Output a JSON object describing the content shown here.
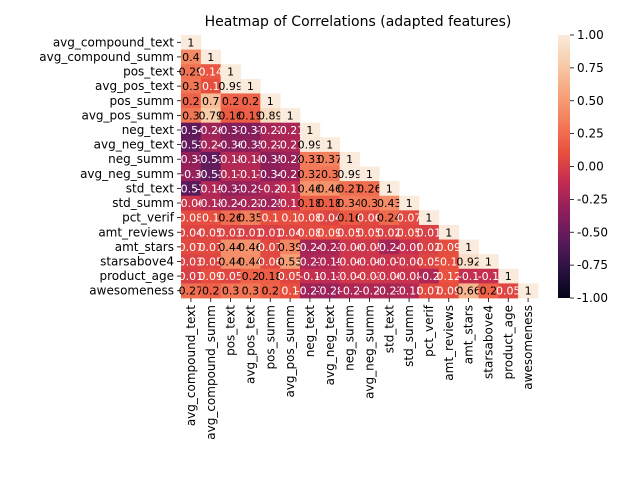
{
  "chart_data": {
    "type": "heatmap",
    "title": "Heatmap of Correlations (adapted features)",
    "xlabel": "",
    "ylabel": "",
    "variables": [
      "avg_compound_text",
      "avg_compound_summ",
      "pos_text",
      "avg_pos_text",
      "pos_summ",
      "avg_pos_summ",
      "neg_text",
      "avg_neg_text",
      "neg_summ",
      "avg_neg_summ",
      "std_text",
      "std_summ",
      "pct_verif",
      "amt_reviews",
      "amt_stars",
      "starsabove4",
      "product_age",
      "awesomeness"
    ],
    "mask": "upper-triangle",
    "colorbar": {
      "min": -1.0,
      "max": 1.0,
      "ticks": [
        "1.00",
        "0.75",
        "0.50",
        "0.25",
        "0.00",
        "-0.25",
        "-0.50",
        "-0.75",
        "-1.00"
      ],
      "ticks_values": [
        1.0,
        0.75,
        0.5,
        0.25,
        0.0,
        -0.25,
        -0.5,
        -0.75,
        -1.0
      ]
    },
    "values": [
      [
        1
      ],
      [
        0.4,
        1
      ],
      [
        0.29,
        0.14,
        1
      ],
      [
        0.3,
        0.1,
        0.99,
        1
      ],
      [
        0.2,
        0.7,
        0.2,
        0.2,
        1
      ],
      [
        0.3,
        0.79,
        0.16,
        0.19,
        0.89,
        1
      ],
      [
        -0.54,
        -0.26,
        -0.37,
        -0.37,
        -0.22,
        -0.21,
        1
      ],
      [
        -0.53,
        -0.24,
        -0.36,
        -0.35,
        -0.22,
        -0.21,
        0.99,
        1
      ],
      [
        -0.31,
        -0.53,
        -0.18,
        -0.18,
        -0.35,
        -0.28,
        0.33,
        0.37,
        1
      ],
      [
        -0.3,
        -0.53,
        -0.17,
        -0.17,
        -0.34,
        -0.27,
        0.32,
        0.3,
        0.99,
        1
      ],
      [
        -0.57,
        -0.19,
        -0.31,
        -0.29,
        -0.2,
        -0.11,
        0.46,
        0.46,
        0.27,
        0.26,
        1
      ],
      [
        -0.06,
        -0.18,
        -0.24,
        -0.22,
        -0.25,
        -0.11,
        0.18,
        0.18,
        0.34,
        0.3,
        0.43,
        1
      ],
      [
        0.08,
        0.1,
        0.26,
        0.35,
        0.1,
        0.1,
        0.08,
        0.04,
        0.16,
        0.06,
        0.24,
        0.07,
        1
      ],
      [
        0.04,
        0.05,
        0.03,
        0.01,
        0.01,
        0.04,
        0.08,
        0.09,
        0.05,
        0.05,
        0.02,
        0.05,
        0.01,
        1
      ],
      [
        0.07,
        0.07,
        0.44,
        0.46,
        0.07,
        0.39,
        -0.24,
        -0.23,
        -0.06,
        -0.05,
        -0.24,
        -0.09,
        0.02,
        0.09,
        1
      ],
      [
        0.03,
        0.05,
        0.44,
        0.44,
        0.06,
        0.53,
        -0.21,
        -0.19,
        -0.06,
        -0.06,
        -0.07,
        -0.04,
        0.05,
        0.1,
        0.92,
        1
      ],
      [
        0.01,
        0.09,
        0.05,
        0.2,
        0.18,
        0.05,
        -0.1,
        -0.13,
        -0.04,
        -0.03,
        -0.06,
        -0.08,
        -0.2,
        0.12,
        -0.1,
        -0.1,
        1
      ],
      [
        0.27,
        0.2,
        0.3,
        0.3,
        0.2,
        0.1,
        -0.27,
        -0.28,
        -0.2,
        -0.2,
        -0.23,
        -0.18,
        0.07,
        0.09,
        0.66,
        0.2,
        0.05,
        1
      ]
    ],
    "labels": [
      [
        "1"
      ],
      [
        "0.4",
        "1"
      ],
      [
        "0.29",
        "0.14",
        "1"
      ],
      [
        "0.3",
        "0.1",
        "0.99",
        "1"
      ],
      [
        "0.2",
        "0.7",
        "0.2",
        "0.2",
        "1"
      ],
      [
        "0.3",
        "0.79",
        "0.16",
        "0.19",
        "0.89",
        "1"
      ],
      [
        "-0.54",
        "-0.26",
        "-0.37",
        "-0.37",
        "-0.22",
        "-0.21",
        "1"
      ],
      [
        "-0.53",
        "-0.24",
        "-0.36",
        "-0.35",
        "-0.22",
        "-0.21",
        "0.99",
        "1"
      ],
      [
        "-0.31",
        "-0.53",
        "-0.18",
        "-0.18",
        "-0.35",
        "-0.28",
        "0.33",
        "0.37",
        "1"
      ],
      [
        "-0.3",
        "-0.53",
        "-0.17",
        "-0.17",
        "-0.34",
        "-0.27",
        "0.32",
        "0.3",
        "0.99",
        "1"
      ],
      [
        "-0.57",
        "-0.19",
        "-0.31",
        "-0.29",
        "-0.2",
        "-0.11",
        "0.46",
        "0.46",
        "0.27",
        "0.26",
        "1"
      ],
      [
        "-0.06",
        "-0.18",
        "-0.24",
        "-0.22",
        "-0.25",
        "-0.11",
        "0.18",
        "0.18",
        "0.34",
        "0.3",
        "0.43",
        "1"
      ],
      [
        "0.08",
        "0.1",
        "0.26",
        "0.35",
        "0.1",
        "0.1",
        "0.08",
        "0.04",
        "0.16",
        "0.06",
        "0.24",
        "0.07",
        "1"
      ],
      [
        "0.04",
        "0.05",
        "0.03",
        "0.01",
        "0.01",
        "0.04",
        "0.08",
        "0.09",
        "0.05",
        "0.05",
        "0.02",
        "0.05",
        "0.01",
        "1"
      ],
      [
        "0.07",
        "0.07",
        "0.44",
        "0.46",
        "0.07",
        "0.39",
        "-0.24",
        "-0.23",
        "-0.06",
        "-0.05",
        "-0.24",
        "-0.09",
        "0.02",
        "0.09",
        "1"
      ],
      [
        "0.03",
        "0.05",
        "0.44",
        "0.44",
        "0.06",
        "0.53",
        "-0.21",
        "-0.19",
        "-0.06",
        "-0.06",
        "-0.07",
        "-0.04",
        "0.05",
        "0.1",
        "0.92",
        "1"
      ],
      [
        "0.01",
        "0.09",
        "0.05",
        "0.2",
        "0.18",
        "0.05",
        "-0.1",
        "-0.13",
        "-0.04",
        "-0.03",
        "-0.06",
        "-0.08",
        "-0.2",
        "0.12",
        "-0.1",
        "-0.1",
        "1"
      ],
      [
        "0.27",
        "0.2",
        "0.3",
        "0.3",
        "0.2",
        "0.1",
        "-0.27",
        "-0.28",
        "-0.2",
        "-0.2",
        "-0.23",
        "-0.18",
        "0.07",
        "0.09",
        "0.66",
        "0.2",
        "0.05",
        "1"
      ]
    ],
    "colormap": "rocket",
    "colormap_stops": [
      "#03051a",
      "#2b1240",
      "#5c1a5c",
      "#8f1f5c",
      "#c32d50",
      "#e9503d",
      "#f37c59",
      "#f6a47b",
      "#f8cba7",
      "#faebdd"
    ]
  }
}
